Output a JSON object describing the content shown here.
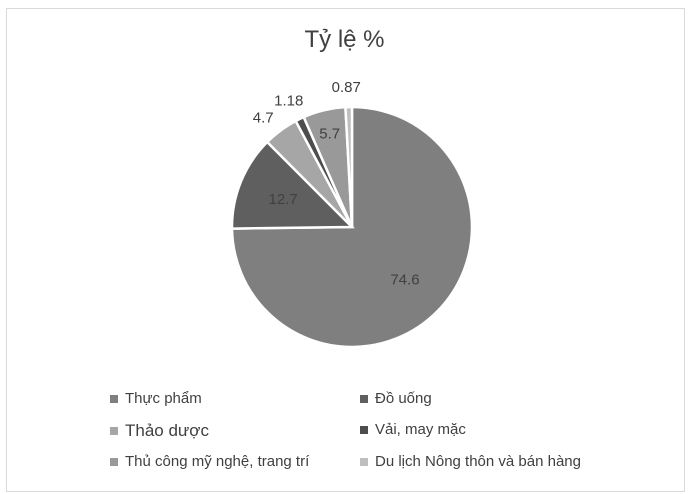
{
  "chart_data": {
    "type": "pie",
    "title": "Tỷ lệ %",
    "categories": [
      "Thực phẩm",
      "Đồ uống",
      "Thảo dược",
      "Vải, may mặc",
      "Thủ công mỹ nghệ, trang trí",
      "Du lịch Nông thôn và bán hàng"
    ],
    "values": [
      74.6,
      12.7,
      4.7,
      1.18,
      5.7,
      0.87
    ],
    "data_labels": [
      "74.6",
      "12.7",
      "4.7",
      "1.18",
      "5.7",
      "0.87"
    ],
    "legend_order": [
      0,
      1,
      2,
      3,
      4,
      5
    ],
    "slice_order": [
      0,
      1,
      2,
      3,
      4,
      5
    ],
    "legend": "bottom",
    "colors": [
      "#7f7f7f",
      "#5f5f5f",
      "#a6a6a6",
      "#4d4d4d",
      "#999999",
      "#bfbfbf"
    ]
  }
}
